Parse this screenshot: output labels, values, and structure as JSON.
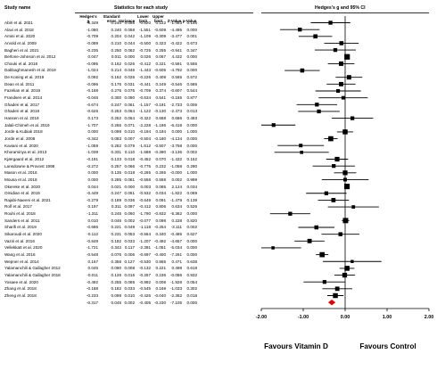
{
  "headers": {
    "study_name": "Study name",
    "statistics": "Statistics for each study",
    "plot_title": "Hedges's g and 95% CI"
  },
  "columns": [
    "Hedges's g",
    "Standard error",
    "Variance",
    "Lower limit",
    "Upper limit",
    "Z-Value",
    "p-Value"
  ],
  "chart_data": {
    "type": "forest",
    "title": "Hedges's g and 95% CI",
    "xlim": [
      -2.0,
      2.0
    ],
    "xticks": [
      "-2.00",
      "-1.00",
      "0.00",
      "1.00",
      "2.00"
    ],
    "favours_left": "Favours Vitamin D",
    "favours_right": "Favours Control",
    "studies": [
      {
        "name": "Abiri et al. 2021",
        "g": -0.349,
        "se": 0.24,
        "var": 0.058,
        "lower": -0.82,
        "upper": 0.122,
        "z": -1.453,
        "p": 0.146
      },
      {
        "name": "Alavi et al. 2018",
        "g": -1.08,
        "se": 0.24,
        "var": 0.058,
        "lower": -1.551,
        "upper": -0.609,
        "z": -4.495,
        "p": 0.0
      },
      {
        "name": "Amini et al. 2020",
        "g": -0.709,
        "se": 0.204,
        "var": 0.042,
        "lower": -1.109,
        "upper": -0.309,
        "z": -3.477,
        "p": 0.001
      },
      {
        "name": "Arvold et al. 2009",
        "g": -0.089,
        "se": 0.21,
        "var": 0.044,
        "lower": -0.5,
        "upper": 0.323,
        "z": -0.422,
        "p": 0.673
      },
      {
        "name": "Bagheri et al. 2021",
        "g": -0.235,
        "se": 0.25,
        "var": 0.062,
        "lower": -0.725,
        "upper": 0.255,
        "z": -0.941,
        "p": 0.347
      },
      {
        "name": "Berlone-Johnson et al. 2012",
        "g": 0.047,
        "se": 0.011,
        "var": 0.0,
        "lower": 0.026,
        "upper": 0.067,
        "z": 4.432,
        "p": 0.0
      },
      {
        "name": "Chouki et al. 2018",
        "g": -0.095,
        "se": 0.162,
        "var": 0.026,
        "lower": -0.412,
        "upper": 0.221,
        "z": -0.591,
        "p": 0.555
      },
      {
        "name": "Dabbaghmanesh et al. 2019",
        "g": -1.024,
        "se": 0.214,
        "var": 0.046,
        "lower": -1.443,
        "upper": -0.605,
        "z": -4.792,
        "p": 0.0
      },
      {
        "name": "De Koning et al. 2019",
        "g": 0.092,
        "se": 0.162,
        "var": 0.026,
        "lower": -0.226,
        "upper": 0.409,
        "z": 0.565,
        "p": 0.572
      },
      {
        "name": "Dean et al. 2011",
        "g": -0.096,
        "se": 0.176,
        "var": 0.031,
        "lower": -0.441,
        "upper": 0.249,
        "z": -0.546,
        "p": 0.585
      },
      {
        "name": "Fazelian et al. 2019",
        "g": -0.168,
        "se": 0.276,
        "var": 0.076,
        "lower": -0.709,
        "upper": 0.374,
        "z": -0.607,
        "p": 0.544
      },
      {
        "name": "Frandsen et al. 2014",
        "g": -0.046,
        "se": 0.3,
        "var": 0.09,
        "lower": -0.634,
        "upper": 0.541,
        "z": -0.155,
        "p": 0.877
      },
      {
        "name": "Ghaderi et al. 2017",
        "g": -0.674,
        "se": 0.247,
        "var": 0.061,
        "lower": -1.157,
        "upper": -0.191,
        "z": -2.733,
        "p": 0.006
      },
      {
        "name": "Ghaderi et al. 2019",
        "g": -0.626,
        "se": 0.253,
        "var": 0.064,
        "lower": -1.122,
        "upper": -0.13,
        "z": -2.473,
        "p": 0.013
      },
      {
        "name": "Hansen et al. 2019",
        "g": 0.173,
        "se": 0.252,
        "var": 0.064,
        "lower": -0.322,
        "upper": 0.668,
        "z": 0.686,
        "p": 0.493
      },
      {
        "name": "Jalali-Chimeh et al. 2019",
        "g": -1.707,
        "se": 0.266,
        "var": 0.071,
        "lower": -2.228,
        "upper": -1.186,
        "z": -6.419,
        "p": 0.0
      },
      {
        "name": "Jorde & Kubiak 2018",
        "g": 0.0,
        "se": 0.099,
        "var": 0.01,
        "lower": -0.194,
        "upper": 0.194,
        "z": 0.0,
        "p": 1.0
      },
      {
        "name": "Jorde et al. 2008",
        "g": -0.342,
        "se": 0.083,
        "var": 0.007,
        "lower": -0.504,
        "upper": -0.18,
        "z": -4.134,
        "p": 0.0
      },
      {
        "name": "Kaviani et al. 2020",
        "g": -1.059,
        "se": 0.282,
        "var": 0.079,
        "lower": -1.612,
        "upper": -0.507,
        "z": -3.758,
        "p": 0.0
      },
      {
        "name": "Khoraminya et al. 2013",
        "g": -1.039,
        "se": 0.331,
        "var": 0.11,
        "lower": -1.688,
        "upper": -0.39,
        "z": -3.136,
        "p": 0.002
      },
      {
        "name": "Kjærgaard et al. 2012",
        "g": -0.191,
        "se": 0.133,
        "var": 0.018,
        "lower": -0.452,
        "upper": 0.07,
        "z": -1.432,
        "p": 0.152
      },
      {
        "name": "Lansdowne & Provost 1998",
        "g": -0.272,
        "se": 0.257,
        "var": 0.066,
        "lower": -0.775,
        "upper": 0.232,
        "z": -1.058,
        "p": 0.29
      },
      {
        "name": "Mason et al. 2016",
        "g": 0.0,
        "se": 0.135,
        "var": 0.018,
        "lower": -0.265,
        "upper": 0.265,
        "z": -0.0,
        "p": 1.0
      },
      {
        "name": "Mousa et al. 2018",
        "g": 0.0,
        "se": 0.285,
        "var": 0.081,
        "lower": -0.558,
        "upper": 0.559,
        "z": 0.002,
        "p": 0.999
      },
      {
        "name": "Okereke et al. 2020",
        "g": 0.044,
        "se": 0.021,
        "var": 0.0,
        "lower": 0.003,
        "upper": 0.085,
        "z": 2.124,
        "p": 0.034
      },
      {
        "name": "Omidian et al. 2019",
        "g": -0.449,
        "se": 0.247,
        "var": 0.061,
        "lower": -0.932,
        "upper": 0.034,
        "z": -1.822,
        "p": 0.069
      },
      {
        "name": "Rajabi-Naeeni et al. 2021",
        "g": -0.279,
        "se": 0.189,
        "var": 0.036,
        "lower": -0.649,
        "upper": 0.091,
        "z": -1.479,
        "p": 0.139
      },
      {
        "name": "Rolf et al. 2017",
        "g": 0.197,
        "se": 0.311,
        "var": 0.097,
        "lower": -0.412,
        "upper": 0.806,
        "z": 0.634,
        "p": 0.526
      },
      {
        "name": "Rouhi et al. 2018",
        "g": -1.311,
        "se": 0.245,
        "var": 0.06,
        "lower": -1.79,
        "upper": -0.832,
        "z": -5.362,
        "p": 0.0
      },
      {
        "name": "Sanders et al. 2011",
        "g": 0.01,
        "se": 0.046,
        "var": 0.002,
        "lower": -0.077,
        "upper": 0.098,
        "z": 0.228,
        "p": 0.82
      },
      {
        "name": "Sharifi et al. 2019",
        "g": -0.686,
        "se": 0.221,
        "var": 0.049,
        "lower": -1.118,
        "upper": -0.254,
        "z": -3.111,
        "p": 0.002
      },
      {
        "name": "Sikaroudi et al. 2020",
        "g": -0.112,
        "se": 0.231,
        "var": 0.053,
        "lower": -0.564,
        "upper": 0.34,
        "z": -0.485,
        "p": 0.627
      },
      {
        "name": "Vaziri et al. 2016",
        "g": -0.849,
        "se": 0.182,
        "var": 0.033,
        "lower": -1.207,
        "upper": -0.492,
        "z": -4.657,
        "p": 0.0
      },
      {
        "name": "Vellekkatt et al. 2020",
        "g": -1.721,
        "se": 0.342,
        "var": 0.117,
        "lower": -2.391,
        "upper": -1.051,
        "z": -5.034,
        "p": 0.0
      },
      {
        "name": "Wang et al. 2016",
        "g": -0.548,
        "se": 0.076,
        "var": 0.006,
        "lower": -0.697,
        "upper": -0.4,
        "z": -7.261,
        "p": 0.0
      },
      {
        "name": "Wepner et al. 2014",
        "g": 0.167,
        "se": 0.356,
        "var": 0.127,
        "lower": -0.53,
        "upper": 0.865,
        "z": 0.471,
        "p": 0.638
      },
      {
        "name": "Yalamanchili & Gallagher 2012",
        "g": 0.045,
        "se": 0.09,
        "var": 0.008,
        "lower": -0.132,
        "upper": 0.221,
        "z": 0.498,
        "p": 0.619
      },
      {
        "name": "Yalamanchili & Gallagher 2018",
        "g": -0.011,
        "se": 0.126,
        "var": 0.016,
        "lower": -0.257,
        "upper": 0.236,
        "z": -0.086,
        "p": 0.932
      },
      {
        "name": "Yosaee et al. 2020",
        "g": -0.492,
        "se": 0.255,
        "var": 0.065,
        "lower": -0.992,
        "upper": 0.008,
        "z": -1.928,
        "p": 0.054
      },
      {
        "name": "Zhang et al. 2018",
        "g": -0.188,
        "se": 0.182,
        "var": 0.033,
        "lower": -0.545,
        "upper": 0.169,
        "z": -1.033,
        "p": 0.302
      },
      {
        "name": "Zheng et al. 2018",
        "g": -0.233,
        "se": 0.099,
        "var": 0.01,
        "lower": -0.426,
        "upper": -0.04,
        "z": -2.362,
        "p": 0.018
      }
    ],
    "summary": {
      "g": -0.317,
      "se": 0.045,
      "var": 0.002,
      "lower": -0.405,
      "upper": -0.23,
      "z": -7.105,
      "p": 0.0
    },
    "colors": {
      "marker": "#000000",
      "summary": "#e00000",
      "axis": "#000000"
    }
  }
}
